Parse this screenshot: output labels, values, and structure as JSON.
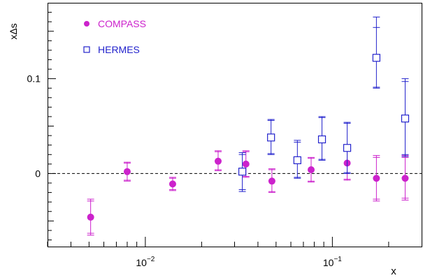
{
  "chart_data": {
    "type": "scatter",
    "xscale": "log",
    "xlim": [
      0.003,
      0.3
    ],
    "ylim": [
      -0.077,
      0.18
    ],
    "xlabel": "x",
    "ylabel": "xΔs",
    "yticks": [
      {
        "value": 0,
        "label": "0"
      },
      {
        "value": 0.1,
        "label": "0.1"
      }
    ],
    "xticks": [
      {
        "value": 0.01,
        "base": "10",
        "exp": "−2"
      },
      {
        "value": 0.1,
        "base": "10",
        "exp": "−1"
      }
    ],
    "reference_line": {
      "y": 0,
      "style": "dashed"
    },
    "legend_position": "top-left",
    "series": [
      {
        "name": "COMPASS",
        "color": "#cc22cc",
        "marker": "filled-circle",
        "points": [
          {
            "x": 0.0051,
            "y": -0.046,
            "lo": -0.065,
            "hi": -0.027,
            "lo2": -0.063,
            "hi2": -0.029
          },
          {
            "x": 0.008,
            "y": 0.002,
            "lo": -0.008,
            "hi": 0.012,
            "lo2": -0.007,
            "hi2": 0.011
          },
          {
            "x": 0.014,
            "y": -0.011,
            "lo": -0.018,
            "hi": -0.004,
            "lo2": -0.017,
            "hi2": -0.005
          },
          {
            "x": 0.0245,
            "y": 0.013,
            "lo": 0.003,
            "hi": 0.024,
            "lo2": 0.004,
            "hi2": 0.023
          },
          {
            "x": 0.0345,
            "y": 0.01,
            "lo": -0.004,
            "hi": 0.024,
            "lo2": -0.003,
            "hi2": 0.023
          },
          {
            "x": 0.0475,
            "y": -0.008,
            "lo": -0.02,
            "hi": 0.005,
            "lo2": -0.019,
            "hi2": 0.004
          },
          {
            "x": 0.077,
            "y": 0.004,
            "lo": -0.009,
            "hi": 0.017,
            "lo2": -0.008,
            "hi2": 0.016
          },
          {
            "x": 0.12,
            "y": 0.011,
            "lo": -0.007,
            "hi": 0.028,
            "lo2": -0.006,
            "hi2": 0.027
          },
          {
            "x": 0.172,
            "y": -0.005,
            "lo": -0.029,
            "hi": 0.019,
            "lo2": -0.027,
            "hi2": 0.017
          },
          {
            "x": 0.245,
            "y": -0.005,
            "lo": -0.028,
            "hi": 0.019,
            "lo2": -0.026,
            "hi2": 0.017
          }
        ]
      },
      {
        "name": "HERMES",
        "color": "#2222cc",
        "marker": "open-square",
        "points": [
          {
            "x": 0.033,
            "y": 0.002,
            "lo": -0.019,
            "hi": 0.022,
            "lo2": -0.017,
            "hi2": 0.02
          },
          {
            "x": 0.047,
            "y": 0.038,
            "lo": 0.02,
            "hi": 0.057,
            "lo2": 0.021,
            "hi2": 0.056
          },
          {
            "x": 0.065,
            "y": 0.014,
            "lo": -0.005,
            "hi": 0.035,
            "lo2": -0.004,
            "hi2": 0.033
          },
          {
            "x": 0.088,
            "y": 0.036,
            "lo": 0.014,
            "hi": 0.06,
            "lo2": 0.015,
            "hi2": 0.059
          },
          {
            "x": 0.12,
            "y": 0.027,
            "lo": 0.0,
            "hi": 0.054,
            "lo2": 0.001,
            "hi2": 0.053
          },
          {
            "x": 0.172,
            "y": 0.122,
            "lo": 0.09,
            "hi": 0.165,
            "lo2": 0.091,
            "hi2": 0.154
          },
          {
            "x": 0.245,
            "y": 0.058,
            "lo": 0.018,
            "hi": 0.1,
            "lo2": 0.02,
            "hi2": 0.097
          }
        ]
      }
    ]
  }
}
